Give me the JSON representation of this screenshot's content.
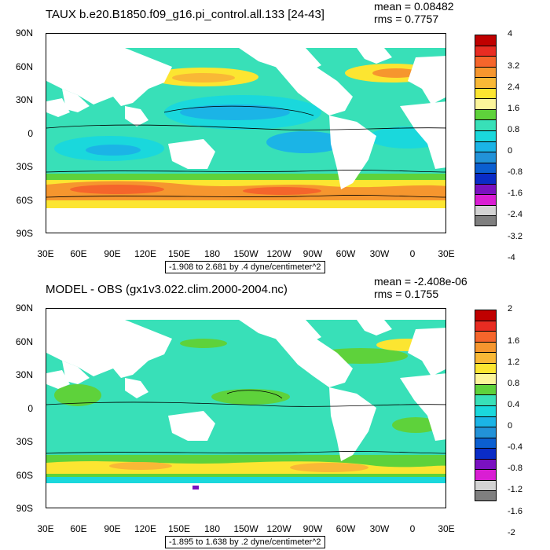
{
  "panels": [
    {
      "title": "TAUX b.e20.B1850.f09_g16.pi_control.all.133 [24-43]",
      "mean": "mean = 0.08482",
      "rms": "rms = 0.7757",
      "range_label": "-1.908 to 2.681 by .4 dyne/centimeter^2",
      "colorbar": {
        "labels": [
          "4",
          "3.2",
          "2.4",
          "1.6",
          "0.8",
          "0",
          "-0.8",
          "-1.6",
          "-2.4",
          "-3.2",
          "-4"
        ],
        "colors": [
          "#c00000",
          "#e82c22",
          "#f5652b",
          "#f6962e",
          "#f9b836",
          "#fce531",
          "#fcf59a",
          "#5ed23b",
          "#38e0b8",
          "#1ad8dc",
          "#1bb4e6",
          "#2292d8",
          "#0b5fd1",
          "#0a2cc7",
          "#7a11c0",
          "#d91ed3",
          "#d3d3d3",
          "#7f7f7f"
        ]
      }
    },
    {
      "title": "MODEL - OBS (gx1v3.022.clim.2000-2004.nc)",
      "mean": "mean = -2.408e-06",
      "rms": "rms = 0.1755",
      "range_label": "-1.895 to 1.638 by .2 dyne/centimeter^2",
      "colorbar": {
        "labels": [
          "2",
          "1.6",
          "1.2",
          "0.8",
          "0.4",
          "0",
          "-0.4",
          "-0.8",
          "-1.2",
          "-1.6",
          "-2"
        ],
        "colors": [
          "#c00000",
          "#e82c22",
          "#f5652b",
          "#f6962e",
          "#f9b836",
          "#fce531",
          "#fcf59a",
          "#5ed23b",
          "#38e0b8",
          "#1ad8dc",
          "#1bb4e6",
          "#2292d8",
          "#0b5fd1",
          "#0a2cc7",
          "#7a11c0",
          "#d91ed3",
          "#d3d3d3",
          "#7f7f7f"
        ]
      }
    }
  ],
  "axes": {
    "lat_labels": [
      "90N",
      "60N",
      "30N",
      "0",
      "30S",
      "60S",
      "90S"
    ],
    "lon_labels": [
      "30E",
      "60E",
      "90E",
      "120E",
      "150E",
      "180",
      "150W",
      "120W",
      "90W",
      "60W",
      "30W",
      "0",
      "30E"
    ]
  },
  "colors": {
    "ocean_cyan": "#38e0b8",
    "ocean_light_blue": "#1ad8dc",
    "orange": "#f6962e",
    "yellow": "#fce531",
    "green": "#5ed23b",
    "land": "#ffffff"
  }
}
